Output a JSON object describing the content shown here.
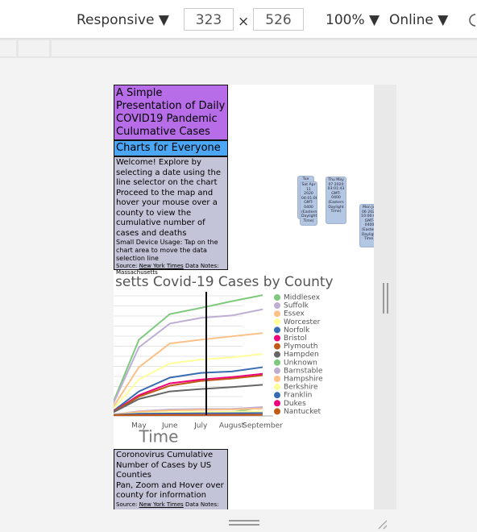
{
  "toolbar": {
    "device": "Responsive ▼",
    "width": "323",
    "times": "×",
    "height": "526",
    "zoom": "100% ▼",
    "network": "Online ▼"
  },
  "page": {
    "title": "A Simple Presentation of Daily COVID19 Pandemic Culumative Cases",
    "subtitle": "Charts for Everyone",
    "welcome": "Welcome! Explore by selecting a date using the line selector on the chart Proceed to the map and hover your mouse over a county to view the cumulative number of cases and deaths",
    "small_device": "Small Device Usage: Tap on the chart area to move the data selection line",
    "source_label": "Source:",
    "source_link": "New York Times",
    "notes": "Data Notes: Massachusetts",
    "map_title": "Coronovirus Cumulative Number of Cases by US Counties",
    "map_help": "Pan, Zoom and Hover over county for information",
    "map_source_label": "Source:",
    "map_source_link": "New York Times",
    "map_notes": "Data Notes:",
    "tooltips": [
      "Tue Apr 07 2020",
      "Sat Apr 11 2020 04:01:08 GMT-0400 (Eastern Daylight Time)",
      "Thu May 07 2020 03:01:43 GMT-0400 (Eastern Daylight Time)",
      "Mon Jul 06 2020 10:00:00 GMT-0400 (Eastern Daylight Time)"
    ]
  },
  "chart_data": {
    "type": "line",
    "title": "setts Covid-19 Cases by County",
    "xlabel": "Time",
    "categories": [
      null,
      "May",
      "June",
      "July",
      "August",
      "September"
    ],
    "ylim": [
      0,
      26000
    ],
    "series": [
      {
        "name": "Middlesex",
        "color": "#7fc97f",
        "values": [
          0,
          15900,
          21300,
          22600,
          24000,
          25300
        ]
      },
      {
        "name": "Suffolk",
        "color": "#beaed4",
        "values": [
          0,
          14300,
          19300,
          20500,
          21000,
          22300
        ]
      },
      {
        "name": "Essex",
        "color": "#fdc086",
        "values": [
          0,
          10100,
          15100,
          15900,
          16600,
          17300
        ]
      },
      {
        "name": "Worcester",
        "color": "#ffff99",
        "values": [
          0,
          7500,
          10900,
          11700,
          12200,
          12900
        ]
      },
      {
        "name": "Norfolk",
        "color": "#386cb0",
        "values": [
          0,
          5000,
          7900,
          8900,
          9200,
          10100
        ]
      },
      {
        "name": "Bristol",
        "color": "#f0027f",
        "values": [
          0,
          4200,
          6700,
          7500,
          8000,
          8700
        ]
      },
      {
        "name": "Plymouth",
        "color": "#bf5b17",
        "values": [
          0,
          3900,
          6200,
          7200,
          7700,
          8400
        ]
      },
      {
        "name": "Hampden",
        "color": "#666666",
        "values": [
          0,
          3400,
          5000,
          5500,
          5900,
          6400
        ]
      },
      {
        "name": "Unknown",
        "color": "#7fc97f",
        "values": [
          0,
          300,
          500,
          500,
          600,
          1700
        ]
      },
      {
        "name": "Barnstable",
        "color": "#beaed4",
        "values": [
          0,
          800,
          1200,
          1300,
          1300,
          1700
        ]
      },
      {
        "name": "Hampshire",
        "color": "#fdc086",
        "values": [
          0,
          700,
          1000,
          1100,
          1200,
          1400
        ]
      },
      {
        "name": "Berkshire",
        "color": "#ffff99",
        "values": [
          0,
          400,
          600,
          650,
          700,
          800
        ]
      },
      {
        "name": "Franklin",
        "color": "#386cb0",
        "values": [
          0,
          300,
          350,
          380,
          400,
          450
        ]
      },
      {
        "name": "Dukes",
        "color": "#f0027f",
        "values": [
          0,
          20,
          40,
          50,
          60,
          80
        ]
      },
      {
        "name": "Nantucket",
        "color": "#bf5b17",
        "values": [
          0,
          10,
          20,
          30,
          40,
          60
        ]
      }
    ]
  }
}
